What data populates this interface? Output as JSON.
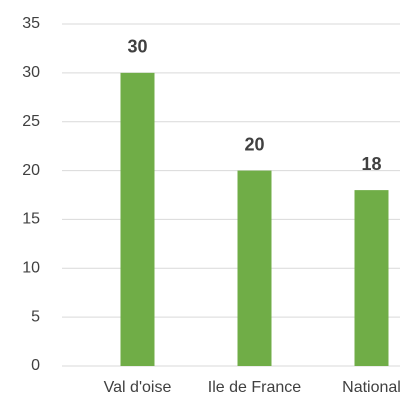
{
  "chart_data": {
    "type": "bar",
    "categories": [
      "Val d'oise",
      "Ile de France",
      "National"
    ],
    "values": [
      30,
      20,
      18
    ],
    "color": "#70ad47",
    "ylim": [
      0,
      35
    ],
    "yticks": [
      0,
      5,
      10,
      15,
      20,
      25,
      30,
      35
    ],
    "grid": true
  }
}
